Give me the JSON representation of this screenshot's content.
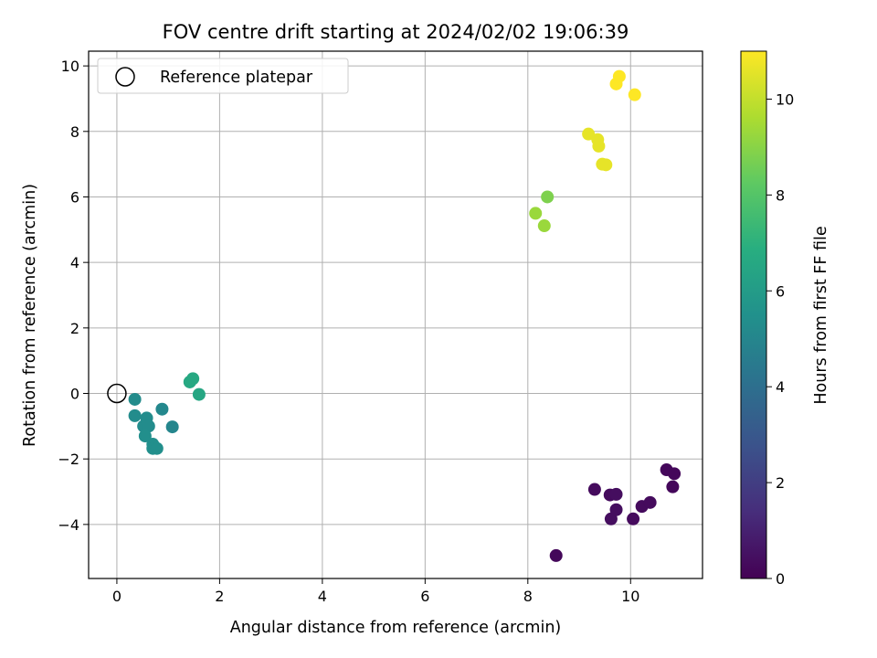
{
  "chart_data": {
    "type": "scatter",
    "title": "FOV centre drift starting at 2024/02/02 19:06:39",
    "xlabel": "Angular distance from reference (arcmin)",
    "ylabel": "Rotation from reference (arcmin)",
    "xlim": [
      -0.55,
      11.4
    ],
    "ylim": [
      -5.65,
      10.45
    ],
    "x_ticks": [
      0,
      2,
      4,
      6,
      8,
      10
    ],
    "y_ticks": [
      -4,
      -2,
      0,
      2,
      4,
      6,
      8,
      10
    ],
    "grid": true,
    "legend": {
      "placement": "top-left",
      "entries": [
        "Reference platepar"
      ]
    },
    "reference_point": {
      "x": 0,
      "y": 0,
      "label": "Reference platepar"
    },
    "colorbar": {
      "label": "Hours from first FF file",
      "range": [
        0,
        11
      ],
      "ticks": [
        0,
        2,
        4,
        6,
        8,
        10
      ],
      "colormap": "viridis"
    },
    "points": [
      {
        "x": 8.55,
        "y": -4.95,
        "c": 0.2
      },
      {
        "x": 9.3,
        "y": -2.93,
        "c": 0.3
      },
      {
        "x": 9.6,
        "y": -3.1,
        "c": 0.3
      },
      {
        "x": 9.72,
        "y": -3.08,
        "c": 0.4
      },
      {
        "x": 9.62,
        "y": -3.83,
        "c": 0.4
      },
      {
        "x": 9.72,
        "y": -3.55,
        "c": 0.4
      },
      {
        "x": 10.05,
        "y": -3.83,
        "c": 0.3
      },
      {
        "x": 10.22,
        "y": -3.45,
        "c": 0.3
      },
      {
        "x": 10.38,
        "y": -3.33,
        "c": 0.3
      },
      {
        "x": 10.7,
        "y": -2.33,
        "c": 0.2
      },
      {
        "x": 10.82,
        "y": -2.85,
        "c": 0.2
      },
      {
        "x": 10.85,
        "y": -2.45,
        "c": 0.2
      },
      {
        "x": 0.35,
        "y": -0.18,
        "c": 5.3
      },
      {
        "x": 0.35,
        "y": -0.68,
        "c": 5.3
      },
      {
        "x": 0.88,
        "y": -0.48,
        "c": 5.1
      },
      {
        "x": 0.58,
        "y": -0.75,
        "c": 5.3
      },
      {
        "x": 0.52,
        "y": -1.0,
        "c": 5.3
      },
      {
        "x": 0.62,
        "y": -1.0,
        "c": 5.3
      },
      {
        "x": 1.08,
        "y": -1.02,
        "c": 5.0
      },
      {
        "x": 0.55,
        "y": -1.3,
        "c": 5.4
      },
      {
        "x": 0.7,
        "y": -1.55,
        "c": 5.4
      },
      {
        "x": 0.7,
        "y": -1.68,
        "c": 5.4
      },
      {
        "x": 0.78,
        "y": -1.68,
        "c": 5.4
      },
      {
        "x": 1.42,
        "y": 0.35,
        "c": 6.6
      },
      {
        "x": 1.48,
        "y": 0.45,
        "c": 6.6
      },
      {
        "x": 1.6,
        "y": -0.03,
        "c": 6.5
      },
      {
        "x": 8.38,
        "y": 6.0,
        "c": 8.8
      },
      {
        "x": 8.15,
        "y": 5.5,
        "c": 9.3
      },
      {
        "x": 8.32,
        "y": 5.12,
        "c": 9.3
      },
      {
        "x": 9.18,
        "y": 7.92,
        "c": 10.6
      },
      {
        "x": 9.36,
        "y": 7.75,
        "c": 10.6
      },
      {
        "x": 9.38,
        "y": 7.55,
        "c": 10.6
      },
      {
        "x": 9.45,
        "y": 7.0,
        "c": 10.6
      },
      {
        "x": 9.52,
        "y": 6.98,
        "c": 10.6
      },
      {
        "x": 9.72,
        "y": 9.45,
        "c": 11.0
      },
      {
        "x": 9.78,
        "y": 9.68,
        "c": 11.0
      },
      {
        "x": 10.08,
        "y": 9.12,
        "c": 11.0
      }
    ]
  }
}
